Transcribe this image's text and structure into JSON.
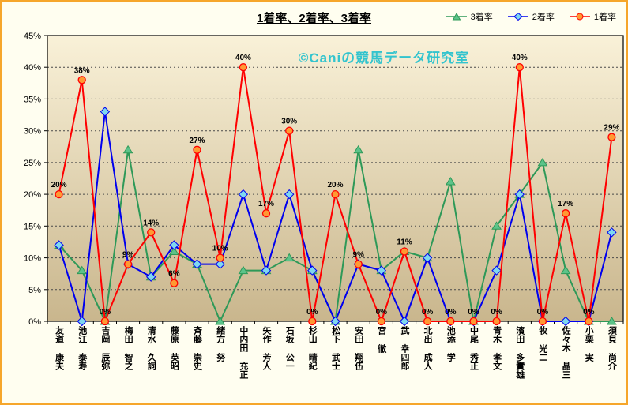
{
  "chart_data": {
    "type": "line",
    "title": "1着率、2着率、3着率",
    "watermark": "©Caniの競馬データ研究室",
    "xlabel": "",
    "ylabel": "",
    "ylim": [
      0,
      45
    ],
    "ytick_step": 5,
    "ytick_labels": [
      "0%",
      "5%",
      "10%",
      "15%",
      "20%",
      "25%",
      "30%",
      "35%",
      "40%",
      "45%"
    ],
    "grid": "horizontal-dotted",
    "legend_position": "top-right",
    "categories": [
      "友道 康夫",
      "池江 泰寿",
      "吉岡 辰弥",
      "梅田 智之",
      "清水 久詞",
      "藤原 英昭",
      "斉藤 崇史",
      "緒方 努",
      "中内田 充正",
      "矢作 芳人",
      "石坂 公一",
      "杉山 晴紀",
      "松下 武士",
      "安田 翔伍",
      "宮 徹",
      "武 幸四郎",
      "北出 成人",
      "池添 学",
      "中尾 秀正",
      "青木 孝文",
      "濱田 多實雄",
      "牧 光二",
      "佐々木 晶三",
      "小栗 実",
      "須貝 尚介"
    ],
    "series": [
      {
        "name": "3着率",
        "marker": "triangle",
        "color": "#2E9958",
        "marker_fill": "#5CC389",
        "values": [
          12,
          8,
          0,
          27,
          7,
          11,
          9,
          0,
          8,
          8,
          10,
          8,
          0,
          27,
          8,
          11,
          10,
          22,
          0,
          15,
          20,
          25,
          8,
          0,
          0
        ]
      },
      {
        "name": "2着率",
        "marker": "diamond",
        "color": "#0000EE",
        "marker_fill": "#7FD8F0",
        "values": [
          12,
          0,
          33,
          9,
          7,
          12,
          9,
          9,
          20,
          8,
          20,
          8,
          0,
          9,
          8,
          0,
          10,
          0,
          0,
          8,
          20,
          0,
          0,
          0,
          14
        ]
      },
      {
        "name": "1着率",
        "marker": "circle",
        "color": "#FF0000",
        "marker_fill": "#FF9933",
        "values": [
          20,
          38,
          0,
          9,
          14,
          6,
          27,
          10,
          40,
          17,
          30,
          0,
          20,
          9,
          0,
          11,
          0,
          0,
          0,
          0,
          40,
          0,
          17,
          0,
          29
        ],
        "data_labels": [
          "20%",
          "38%",
          "0%",
          "9%",
          "14%",
          "6%",
          "27%",
          "10%",
          "40%",
          "17%",
          "30%",
          "0%",
          "20%",
          "9%",
          "0%",
          "11%",
          "0%",
          "0%",
          "0%",
          "0%",
          "40%",
          "0%",
          "17%",
          "0%",
          "29%"
        ]
      }
    ],
    "colors": {
      "page_bg": "#FFFEF0",
      "border": "#F6A62B",
      "plot_bg_top": "#F9F1D8",
      "plot_bg_bottom": "#C9B68D",
      "grid": "#4A4A4A",
      "watermark": "#33C4CE"
    }
  }
}
